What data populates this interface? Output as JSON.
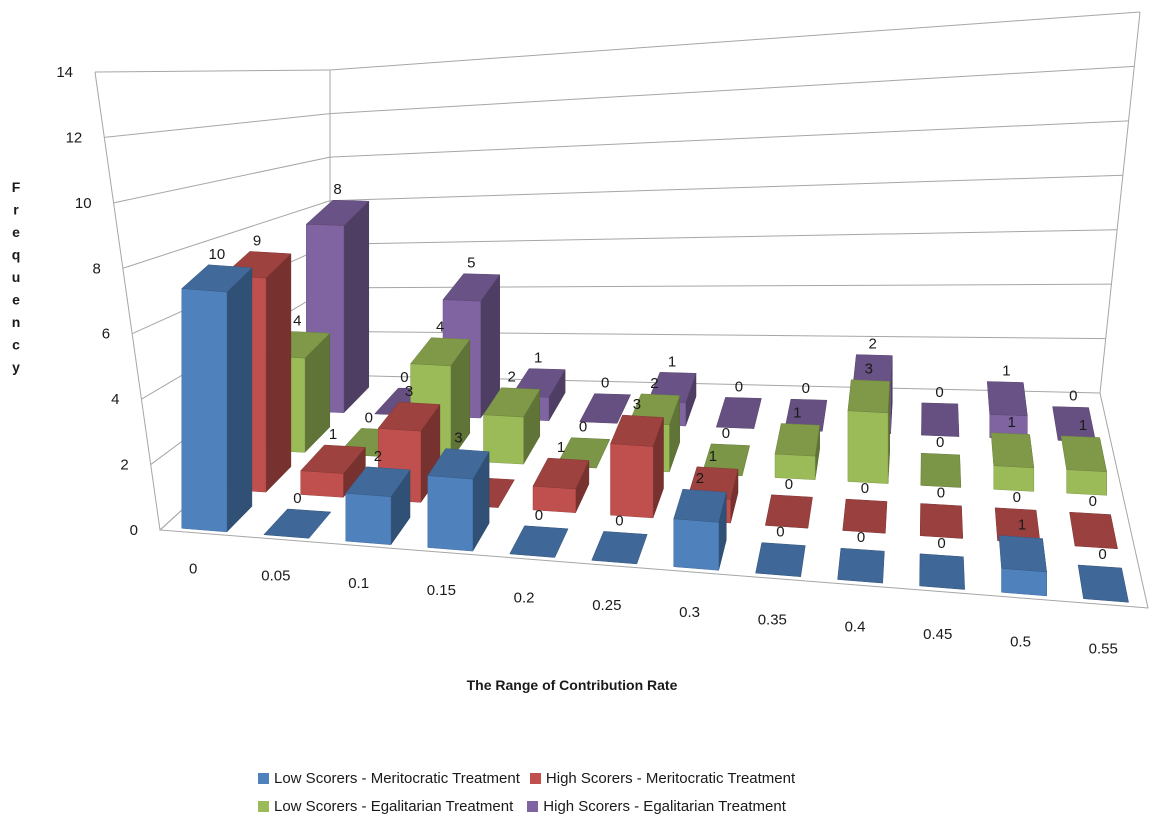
{
  "chart_data": {
    "type": "bar",
    "subtype": "3d-column",
    "title": "",
    "xlabel": "The Range of Contribution Rate",
    "ylabel": "Frequency",
    "ylim": [
      0,
      14
    ],
    "yticks": [
      0,
      2,
      4,
      6,
      8,
      10,
      12,
      14
    ],
    "categories": [
      "0",
      "0.05",
      "0.1",
      "0.15",
      "0.2",
      "0.25",
      "0.3",
      "0.35",
      "0.4",
      "0.45",
      "0.5",
      "0.55"
    ],
    "grid": true,
    "legend_position": "bottom",
    "series": [
      {
        "name": "Low Scorers - Meritocratic Treatment",
        "color": "#4f81bd",
        "values": [
          10,
          0,
          2,
          3,
          0,
          0,
          2,
          0,
          0,
          0,
          1,
          0
        ]
      },
      {
        "name": "High Scorers - Meritocratic Treatment",
        "color": "#c0504d",
        "values": [
          9,
          1,
          3,
          0,
          1,
          3,
          1,
          0,
          0,
          0,
          0,
          0
        ]
      },
      {
        "name": "Low Scorers - Egalitarian Treatment",
        "color": "#9bbb59",
        "values": [
          4,
          0,
          4,
          2,
          0,
          2,
          0,
          1,
          3,
          0,
          1,
          1
        ]
      },
      {
        "name": "High Scorers - Egalitarian Treatment",
        "color": "#8064a2",
        "values": [
          8,
          0,
          5,
          1,
          0,
          1,
          0,
          0,
          2,
          0,
          1,
          0
        ]
      }
    ]
  }
}
